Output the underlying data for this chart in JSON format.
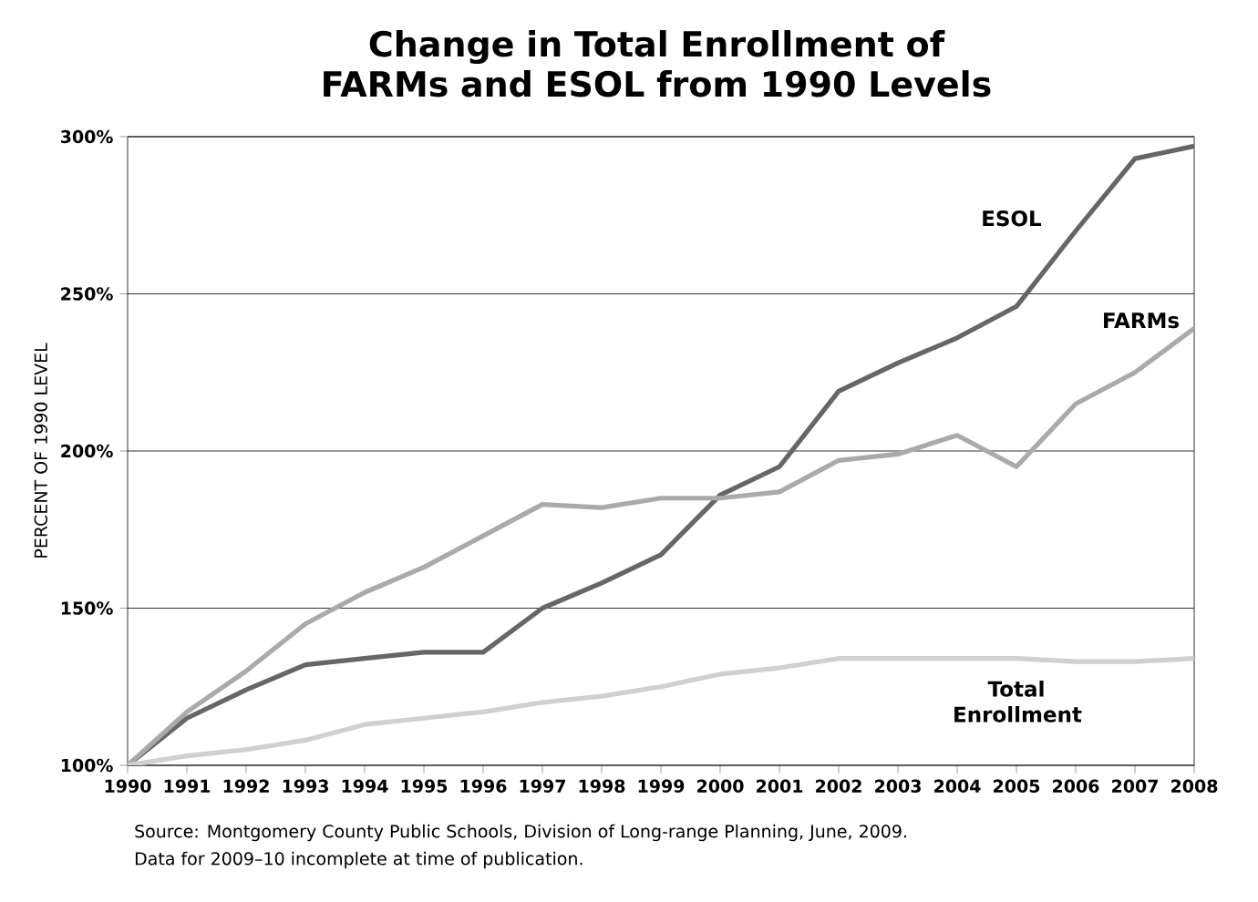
{
  "chart_data": {
    "type": "line",
    "title": "Change in Total Enrollment of FARMs and ESOL from 1990 Levels",
    "ylabel": "PERCENT OF 1990 LEVEL",
    "x": [
      1990,
      1991,
      1992,
      1993,
      1994,
      1995,
      1996,
      1997,
      1998,
      1999,
      2000,
      2001,
      2002,
      2003,
      2004,
      2005,
      2006,
      2007,
      2008
    ],
    "series": [
      {
        "name": "ESOL",
        "color": "#666666",
        "values": [
          100,
          115,
          124,
          132,
          134,
          136,
          136,
          150,
          158,
          167,
          186,
          195,
          219,
          228,
          236,
          246,
          270,
          293,
          297
        ]
      },
      {
        "name": "FARMs",
        "color": "#aaaaaa",
        "values": [
          100,
          117,
          130,
          145,
          155,
          163,
          173,
          183,
          182,
          185,
          185,
          187,
          197,
          199,
          205,
          195,
          215,
          225,
          239
        ]
      },
      {
        "name": "Total Enrollment",
        "color": "#d0d0d0",
        "values": [
          100,
          103,
          105,
          108,
          113,
          115,
          117,
          120,
          122,
          125,
          129,
          131,
          134,
          134,
          134,
          134,
          133,
          133,
          134
        ]
      }
    ],
    "xlim": [
      1990,
      2008
    ],
    "ylim": [
      100,
      300
    ],
    "xticks": [
      1990,
      1991,
      1992,
      1993,
      1994,
      1995,
      1996,
      1997,
      1998,
      1999,
      2000,
      2001,
      2002,
      2003,
      2004,
      2005,
      2006,
      2007,
      2008
    ],
    "yticks": [
      {
        "value": 100,
        "label": "100%"
      },
      {
        "value": 150,
        "label": "150%"
      },
      {
        "value": 200,
        "label": "200%"
      },
      {
        "value": 250,
        "label": "250%"
      },
      {
        "value": 300,
        "label": "300%"
      }
    ],
    "grid": "y",
    "legend": false,
    "marker": "none",
    "line_style": "solid",
    "annotations": [
      "Source: Montgomery County Public Schools, Division of Long-range Planning, June, 2009.",
      "Data for 2009–10 incomplete at time of publication."
    ]
  }
}
